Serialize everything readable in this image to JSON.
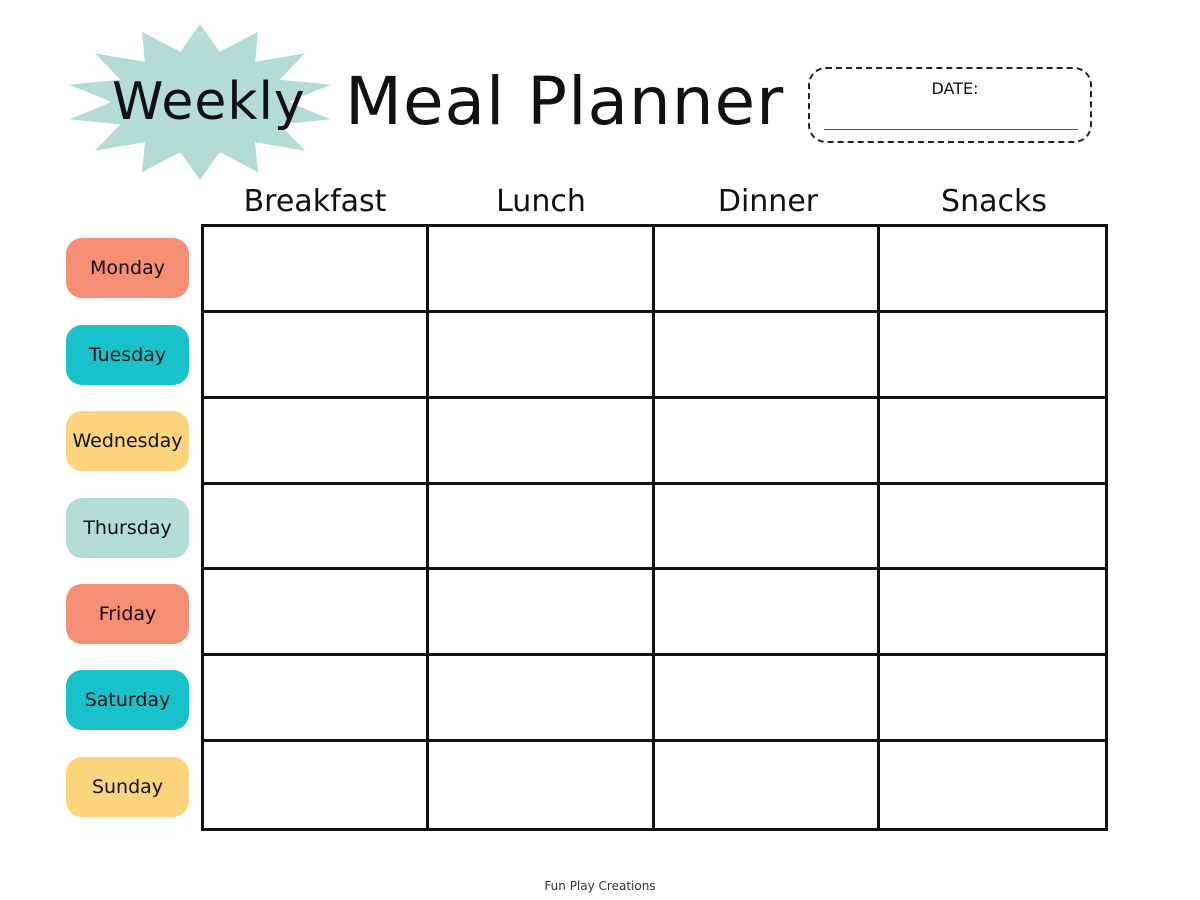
{
  "header": {
    "weekly": "Weekly",
    "title": "Meal Planner",
    "date_label": "DATE:"
  },
  "colors": {
    "burst": "#b3dcd6",
    "salmon": "#f58e73",
    "teal": "#17c2cb",
    "yellow": "#fdd47c",
    "mint": "#b3dcd6"
  },
  "columns": [
    "Breakfast",
    "Lunch",
    "Dinner",
    "Snacks"
  ],
  "days": [
    {
      "label": "Monday",
      "color": "#f58e73"
    },
    {
      "label": "Tuesday",
      "color": "#17c2cb"
    },
    {
      "label": "Wednesday",
      "color": "#fdd47c"
    },
    {
      "label": "Thursday",
      "color": "#b3dcd6"
    },
    {
      "label": "Friday",
      "color": "#f58e73"
    },
    {
      "label": "Saturday",
      "color": "#17c2cb"
    },
    {
      "label": "Sunday",
      "color": "#fdd47c"
    }
  ],
  "footer": "Fun Play Creations"
}
